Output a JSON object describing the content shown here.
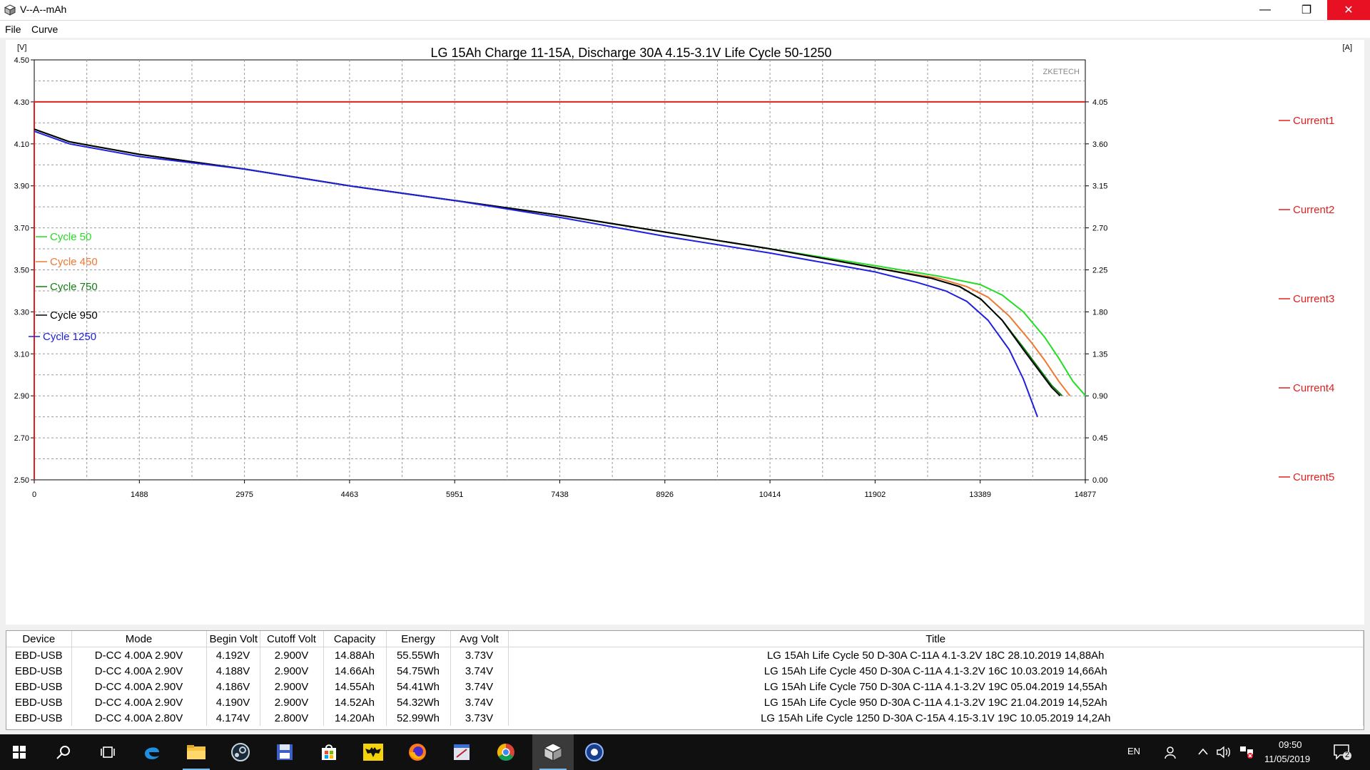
{
  "window": {
    "title": "V--A--mAh",
    "minimize_glyph": "—",
    "maximize_glyph": "❐",
    "close_glyph": "✕"
  },
  "menu": {
    "items": [
      "File",
      "Curve"
    ]
  },
  "chart_data": {
    "type": "line",
    "title": "LG 15Ah Charge 11-15A, Discharge 30A 4.15-3.1V Life Cycle 50-1250",
    "watermark": "ZKETECH",
    "left_unit": "[V]",
    "right_unit": "[A]",
    "ylim": [
      2.5,
      4.5
    ],
    "y2lim": [
      0,
      4.5
    ],
    "xlim": [
      0,
      14877
    ],
    "x_ticks": [
      "0",
      "1488",
      "2975",
      "4463",
      "5951",
      "7438",
      "8926",
      "10414",
      "11902",
      "13389",
      "14877"
    ],
    "y_ticks": [
      "2.50",
      "2.70",
      "2.90",
      "3.10",
      "3.30",
      "3.50",
      "3.70",
      "3.90",
      "4.10",
      "4.30",
      "4.50"
    ],
    "y2_ticks": [
      "0.00",
      "0.45",
      "0.90",
      "1.35",
      "1.80",
      "2.25",
      "2.70",
      "3.15",
      "3.60",
      "4.05"
    ],
    "grid": true,
    "series": [
      {
        "name": "Cycle 50",
        "color": "#22dd22",
        "x": [
          0,
          500,
          1488,
          2975,
          4463,
          5951,
          7438,
          8926,
          10414,
          11902,
          12800,
          13389,
          13700,
          14000,
          14300,
          14500,
          14700,
          14880
        ],
        "y": [
          4.17,
          4.11,
          4.05,
          3.98,
          3.9,
          3.83,
          3.76,
          3.68,
          3.6,
          3.52,
          3.47,
          3.43,
          3.38,
          3.3,
          3.18,
          3.08,
          2.97,
          2.9
        ]
      },
      {
        "name": "Cycle 450",
        "color": "#f07830",
        "x": [
          0,
          500,
          1488,
          2975,
          4463,
          5951,
          7438,
          8926,
          10414,
          11902,
          12800,
          13200,
          13500,
          13800,
          14100,
          14300,
          14500,
          14660
        ],
        "y": [
          4.17,
          4.11,
          4.05,
          3.98,
          3.9,
          3.83,
          3.76,
          3.68,
          3.6,
          3.51,
          3.46,
          3.42,
          3.37,
          3.28,
          3.16,
          3.07,
          2.97,
          2.9
        ]
      },
      {
        "name": "Cycle 750",
        "color": "#108010",
        "x": [
          0,
          500,
          1488,
          2975,
          4463,
          5951,
          7438,
          8926,
          10414,
          11902,
          12700,
          13100,
          13400,
          13700,
          14000,
          14200,
          14400,
          14550
        ],
        "y": [
          4.17,
          4.11,
          4.05,
          3.98,
          3.9,
          3.83,
          3.76,
          3.68,
          3.6,
          3.51,
          3.46,
          3.42,
          3.36,
          3.26,
          3.13,
          3.04,
          2.95,
          2.9
        ]
      },
      {
        "name": "Cycle 950",
        "color": "#000000",
        "x": [
          0,
          500,
          1488,
          2975,
          4463,
          5951,
          7438,
          8926,
          10414,
          11902,
          12700,
          13100,
          13400,
          13700,
          14000,
          14200,
          14400,
          14520
        ],
        "y": [
          4.17,
          4.11,
          4.05,
          3.98,
          3.9,
          3.83,
          3.76,
          3.68,
          3.6,
          3.51,
          3.46,
          3.42,
          3.36,
          3.26,
          3.12,
          3.03,
          2.94,
          2.9
        ]
      },
      {
        "name": "Cycle 1250",
        "color": "#2020e0",
        "x": [
          0,
          500,
          1488,
          2975,
          4463,
          5951,
          7438,
          8926,
          10414,
          11902,
          12500,
          12900,
          13200,
          13500,
          13800,
          14000,
          14100,
          14200
        ],
        "y": [
          4.16,
          4.1,
          4.04,
          3.98,
          3.9,
          3.83,
          3.75,
          3.66,
          3.58,
          3.49,
          3.44,
          3.4,
          3.35,
          3.26,
          3.12,
          2.98,
          2.89,
          2.8
        ]
      }
    ],
    "current_series": [
      {
        "name": "Current1",
        "color": "#e02020",
        "value": 4.05
      },
      {
        "name": "Current2",
        "color": "#e02020"
      },
      {
        "name": "Current3",
        "color": "#e02020"
      },
      {
        "name": "Current4",
        "color": "#e02020"
      },
      {
        "name": "Current5",
        "color": "#e02020"
      }
    ]
  },
  "table": {
    "headers": [
      "Device",
      "Mode",
      "Begin Volt",
      "Cutoff Volt",
      "Capacity",
      "Energy",
      "Avg Volt",
      "Title"
    ],
    "rows": [
      [
        "EBD-USB",
        "D-CC  4.00A  2.90V",
        "4.192V",
        "2.900V",
        "14.88Ah",
        "55.55Wh",
        "3.73V",
        "LG 15Ah Life Cycle 50 D-30A C-11A 4.1-3.2V 18C 28.10.2019 14,88Ah"
      ],
      [
        "EBD-USB",
        "D-CC  4.00A  2.90V",
        "4.188V",
        "2.900V",
        "14.66Ah",
        "54.75Wh",
        "3.74V",
        "LG 15Ah Life Cycle 450 D-30A C-11A 4.1-3.2V 16C 10.03.2019 14,66Ah"
      ],
      [
        "EBD-USB",
        "D-CC  4.00A  2.90V",
        "4.186V",
        "2.900V",
        "14.55Ah",
        "54.41Wh",
        "3.74V",
        "LG 15Ah Life Cycle 750 D-30A C-11A 4.1-3.2V 19C 05.04.2019 14,55Ah"
      ],
      [
        "EBD-USB",
        "D-CC  4.00A  2.90V",
        "4.190V",
        "2.900V",
        "14.52Ah",
        "54.32Wh",
        "3.74V",
        "LG 15Ah Life Cycle 950 D-30A C-11A 4.1-3.2V 19C 21.04.2019 14,52Ah"
      ],
      [
        "EBD-USB",
        "D-CC  4.00A  2.80V",
        "4.174V",
        "2.800V",
        "14.20Ah",
        "52.99Wh",
        "3.73V",
        "LG 15Ah Life Cycle 1250 D-30A C-15A 4.15-3.1V 19C 10.05.2019 14,2Ah"
      ]
    ]
  },
  "taskbar": {
    "apps": [
      "start-icon",
      "search-icon",
      "task-view-icon",
      "edge-icon",
      "file-explorer-icon",
      "steam-icon",
      "save-app-icon",
      "store-icon",
      "batman-app-icon",
      "firefox-icon",
      "editor-app-icon",
      "chrome-icon",
      "vamah-app-icon",
      "media-app-icon"
    ],
    "language": "EN",
    "time": "09:50",
    "date": "11/05/2019",
    "notifications": "2"
  }
}
